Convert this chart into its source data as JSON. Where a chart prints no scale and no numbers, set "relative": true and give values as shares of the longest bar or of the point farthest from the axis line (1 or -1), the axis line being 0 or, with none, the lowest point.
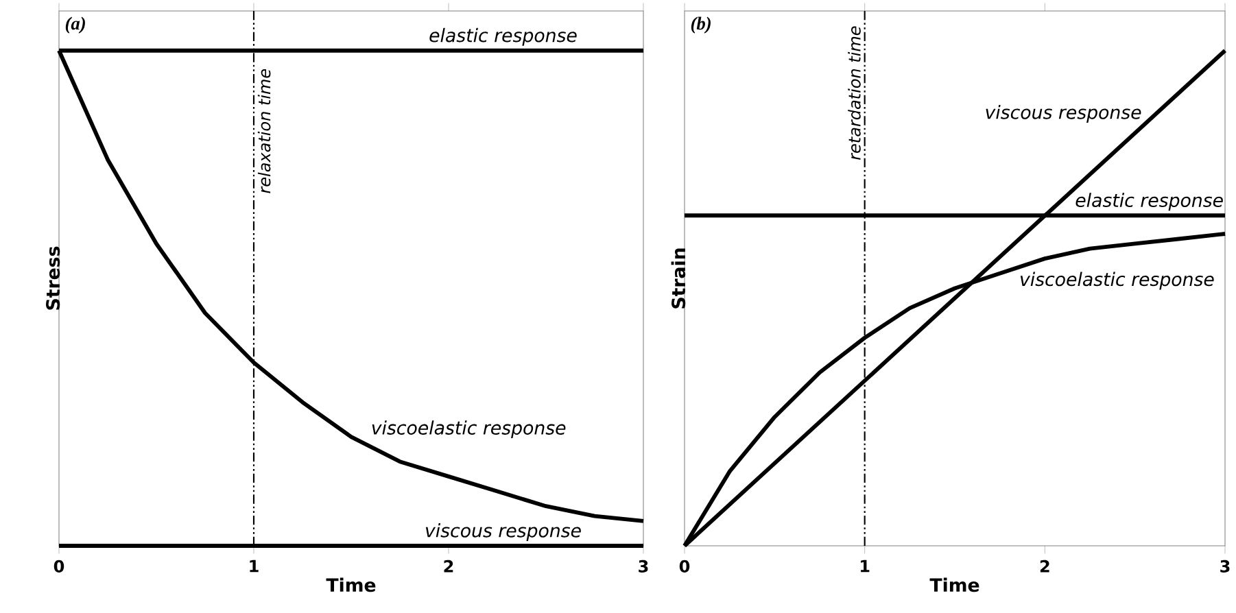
{
  "chart_data": [
    {
      "type": "line",
      "title": "(a)",
      "xlabel": "Time",
      "ylabel": "Stress",
      "relative": true,
      "xlim": [
        0,
        3
      ],
      "xticks": [
        0,
        1,
        2,
        3
      ],
      "series": [
        {
          "name": "elastic response",
          "color": "#000000",
          "x": [
            0,
            3
          ],
          "values": [
            1,
            1
          ]
        },
        {
          "name": "viscoelastic response",
          "color": "#000000",
          "x": [
            0,
            0.25,
            0.5,
            0.75,
            1,
            1.25,
            1.5,
            1.75,
            2,
            2.25,
            2.5,
            2.75,
            3
          ],
          "values": [
            1,
            0.78,
            0.61,
            0.47,
            0.37,
            0.29,
            0.22,
            0.17,
            0.14,
            0.11,
            0.08,
            0.06,
            0.05
          ]
        },
        {
          "name": "viscous response",
          "color": "#000000",
          "x": [
            0,
            3
          ],
          "values": [
            0,
            0
          ]
        }
      ],
      "ref_lines": [
        {
          "axis": "x",
          "value": 1,
          "label": "relaxation time"
        }
      ]
    },
    {
      "type": "line",
      "title": "(b)",
      "xlabel": "Time",
      "ylabel": "Strain",
      "relative": true,
      "xlim": [
        0,
        3
      ],
      "xticks": [
        0,
        1,
        2,
        3
      ],
      "series": [
        {
          "name": "viscous response",
          "color": "#000000",
          "x": [
            0,
            3
          ],
          "values": [
            0,
            1
          ]
        },
        {
          "name": "elastic response",
          "color": "#000000",
          "x": [
            0,
            3
          ],
          "values": [
            0.667,
            0.667
          ]
        },
        {
          "name": "viscoelastic response",
          "color": "#000000",
          "x": [
            0,
            0.25,
            0.5,
            0.75,
            1,
            1.25,
            1.5,
            1.75,
            2,
            2.25,
            2.5,
            2.75,
            3
          ],
          "values": [
            0,
            0.15,
            0.26,
            0.35,
            0.42,
            0.48,
            0.52,
            0.55,
            0.58,
            0.6,
            0.61,
            0.62,
            0.63
          ]
        }
      ],
      "ref_lines": [
        {
          "axis": "x",
          "value": 1,
          "label": "retardation time"
        }
      ]
    }
  ]
}
